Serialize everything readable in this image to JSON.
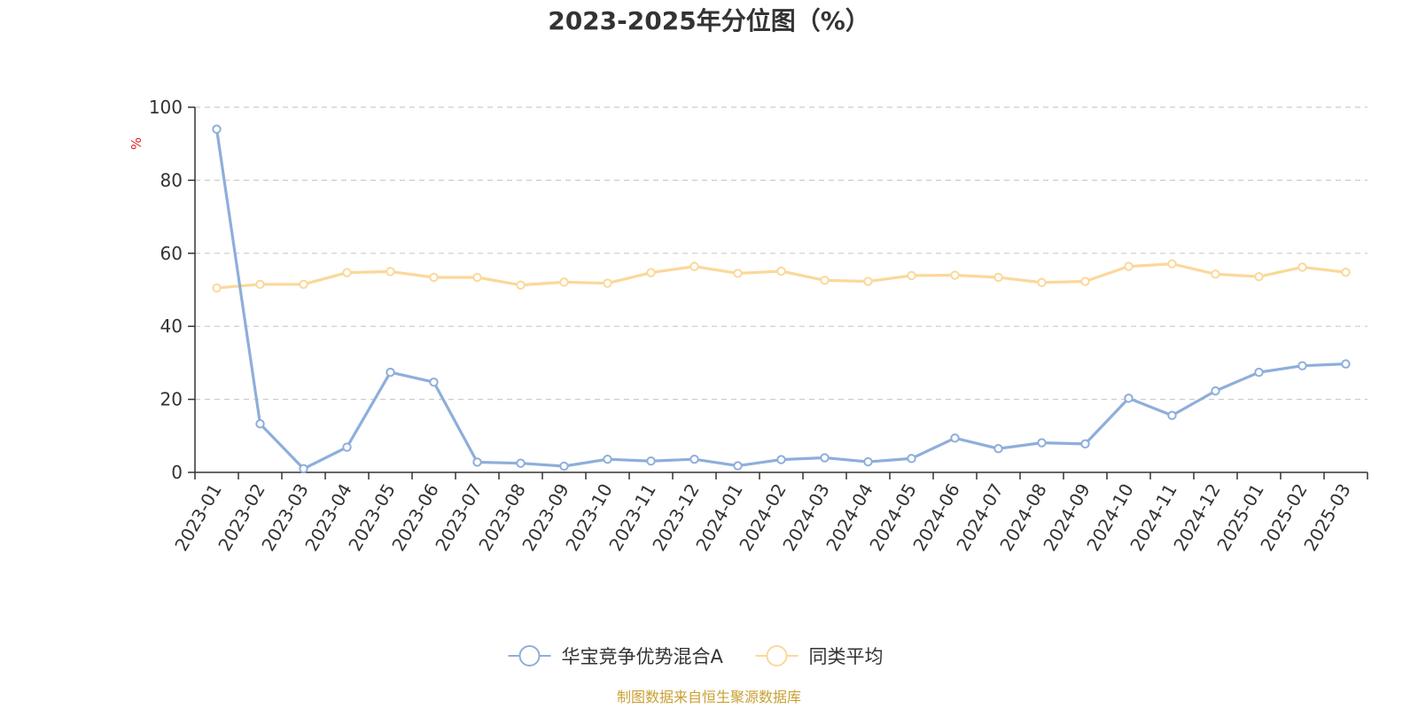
{
  "chart_data": {
    "type": "line",
    "title": "2023-2025年分位图（%）",
    "ylabel": "%",
    "xlabel": "",
    "ylim": [
      0,
      100
    ],
    "yticks": [
      0,
      20,
      40,
      60,
      80,
      100
    ],
    "grid": true,
    "legend_position": "bottom-center",
    "categories": [
      "2023-01",
      "2023-02",
      "2023-03",
      "2023-04",
      "2023-05",
      "2023-06",
      "2023-07",
      "2023-08",
      "2023-09",
      "2023-10",
      "2023-11",
      "2023-12",
      "2024-01",
      "2024-02",
      "2024-03",
      "2024-04",
      "2024-05",
      "2024-06",
      "2024-07",
      "2024-08",
      "2024-09",
      "2024-10",
      "2024-11",
      "2024-12",
      "2025-01",
      "2025-02",
      "2025-03"
    ],
    "series": [
      {
        "name": "华宝竞争优势混合A",
        "color": "#8eaedb",
        "values": [
          94.0,
          13.3,
          1.0,
          6.9,
          27.4,
          24.7,
          2.8,
          2.5,
          1.7,
          3.6,
          3.1,
          3.6,
          1.8,
          3.5,
          4.0,
          2.9,
          3.8,
          9.4,
          6.5,
          8.1,
          7.8,
          20.3,
          15.6,
          22.3,
          27.4,
          29.2,
          29.7
        ]
      },
      {
        "name": "同类平均",
        "color": "#fbd89a",
        "values": [
          50.5,
          51.5,
          51.5,
          54.7,
          55.0,
          53.4,
          53.4,
          51.3,
          52.1,
          51.8,
          54.7,
          56.4,
          54.5,
          55.1,
          52.6,
          52.3,
          53.9,
          54.0,
          53.4,
          52.0,
          52.3,
          56.4,
          57.1,
          54.3,
          53.6,
          56.2,
          54.8
        ]
      }
    ]
  },
  "source": {
    "text": "制图数据来自恒生聚源数据库",
    "color": "#c8a032"
  },
  "unit_color": "#e02020"
}
